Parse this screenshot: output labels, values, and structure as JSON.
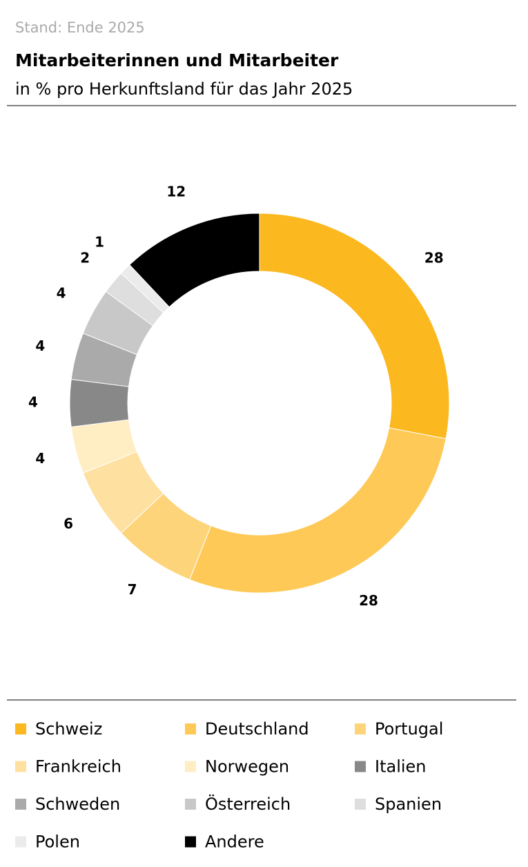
{
  "chart_data": {
    "type": "donut",
    "note": "Stand: Ende 2025",
    "title": "Mitarbeiterinnen und Mitarbeiter",
    "subtitle": "in % pro Herkunftsland für das Jahr 2025",
    "categories": [
      "Schweiz",
      "Deutschland",
      "Portugal",
      "Frankreich",
      "Norwegen",
      "Italien",
      "Schweden",
      "Österreich",
      "Spanien",
      "Polen",
      "Andere"
    ],
    "values": [
      28,
      28,
      7,
      6,
      4,
      4,
      4,
      4,
      2,
      1,
      12
    ],
    "colors": [
      "#fbb81f",
      "#fec957",
      "#fed47a",
      "#fee0a0",
      "#ffedc4",
      "#888888",
      "#aaaaaa",
      "#c8c8c8",
      "#dedede",
      "#ebebeb",
      "#000000"
    ]
  }
}
